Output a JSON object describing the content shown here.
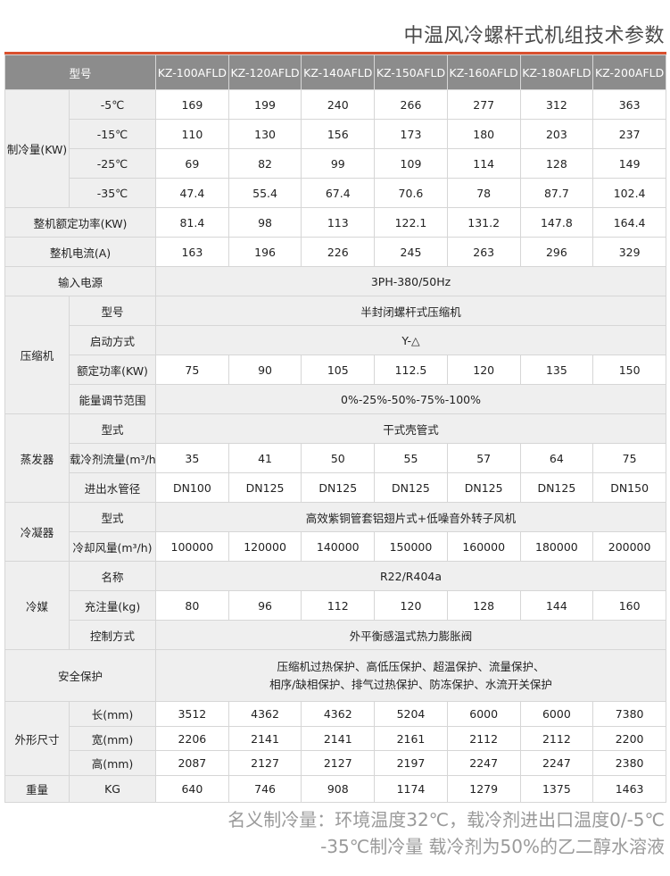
{
  "title": "中温风冷螺杆式机组技术参数",
  "header": {
    "label": "型号",
    "models": [
      "KZ-100AFLD",
      "KZ-120AFLD",
      "KZ-140AFLD",
      "KZ-150AFLD",
      "KZ-160AFLD",
      "KZ-180AFLD",
      "KZ-200AFLD"
    ]
  },
  "sections": [
    {
      "label": "制冷量(KW)",
      "rows": [
        {
          "sub": "-5℃",
          "values": [
            "169",
            "199",
            "240",
            "266",
            "277",
            "312",
            "363"
          ]
        },
        {
          "sub": "-15℃",
          "values": [
            "110",
            "130",
            "156",
            "173",
            "180",
            "203",
            "237"
          ]
        },
        {
          "sub": "-25℃",
          "values": [
            "69",
            "82",
            "99",
            "109",
            "114",
            "128",
            "149"
          ]
        },
        {
          "sub": "-35℃",
          "values": [
            "47.4",
            "55.4",
            "67.4",
            "70.6",
            "78",
            "87.7",
            "102.4"
          ]
        }
      ]
    },
    {
      "label": "整机额定功率(KW)",
      "values": [
        "81.4",
        "98",
        "113",
        "122.1",
        "131.2",
        "147.8",
        "164.4"
      ]
    },
    {
      "label": "整机电流(A)",
      "values": [
        "163",
        "196",
        "226",
        "245",
        "263",
        "296",
        "329"
      ]
    },
    {
      "label": "输入电源",
      "value": "3PH-380/50Hz"
    },
    {
      "label": "压缩机",
      "rows": [
        {
          "sub": "型号",
          "value": "半封闭螺杆式压缩机"
        },
        {
          "sub": "启动方式",
          "value": "Y-△"
        },
        {
          "sub": "额定功率(KW)",
          "values": [
            "75",
            "90",
            "105",
            "112.5",
            "120",
            "135",
            "150"
          ]
        },
        {
          "sub": "能量调节范围",
          "value": "0%-25%-50%-75%-100%"
        }
      ]
    },
    {
      "label": "蒸发器",
      "rows": [
        {
          "sub": "型式",
          "value": "干式壳管式"
        },
        {
          "sub": "载冷剂流量(m³/h)",
          "values": [
            "35",
            "41",
            "50",
            "55",
            "57",
            "64",
            "75"
          ]
        },
        {
          "sub": "进出水管径",
          "values": [
            "DN100",
            "DN125",
            "DN125",
            "DN125",
            "DN125",
            "DN125",
            "DN150"
          ]
        }
      ]
    },
    {
      "label": "冷凝器",
      "rows": [
        {
          "sub": "型式",
          "value": "高效紫铜管套铝翅片式+低噪音外转子风机"
        },
        {
          "sub": "冷却风量(m³/h)",
          "values": [
            "100000",
            "120000",
            "140000",
            "150000",
            "160000",
            "180000",
            "200000"
          ]
        }
      ]
    },
    {
      "label": "冷媒",
      "rows": [
        {
          "sub": "名称",
          "value": "R22/R404a"
        },
        {
          "sub": "充注量(kg)",
          "values": [
            "80",
            "96",
            "112",
            "120",
            "128",
            "144",
            "160"
          ]
        },
        {
          "sub": "控制方式",
          "value": "外平衡感温式热力膨胀阀"
        }
      ]
    },
    {
      "label": "安全保护",
      "lines": [
        "压缩机过热保护、高低压保护、超温保护、流量保护、",
        "相序/缺相保护、排气过热保护、防冻保护、水流开关保护"
      ]
    },
    {
      "label": "外形尺寸",
      "rows": [
        {
          "sub": "长(mm)",
          "values": [
            "3512",
            "4362",
            "4362",
            "5204",
            "6000",
            "6000",
            "7380"
          ]
        },
        {
          "sub": "宽(mm)",
          "values": [
            "2206",
            "2141",
            "2141",
            "2161",
            "2112",
            "2112",
            "2200"
          ]
        },
        {
          "sub": "高(mm)",
          "values": [
            "2087",
            "2127",
            "2127",
            "2197",
            "2247",
            "2247",
            "2380"
          ]
        }
      ]
    },
    {
      "label": "重量",
      "rows": [
        {
          "sub": "KG",
          "values": [
            "640",
            "746",
            "908",
            "1174",
            "1279",
            "1375",
            "1463"
          ]
        }
      ]
    }
  ],
  "notes": [
    "名义制冷量：环境温度32℃，载冷剂进出口温度0/-5℃",
    "-35℃制冷量  载冷剂为50%的乙二醇水溶液"
  ],
  "colors": {
    "accent": "#d9502e",
    "header_bg": "#8c8c8c",
    "label_bg": "#efefef"
  }
}
